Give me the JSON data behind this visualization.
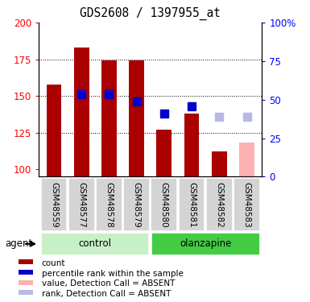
{
  "title": "GDS2608 / 1397955_at",
  "samples": [
    "GSM48559",
    "GSM48577",
    "GSM48578",
    "GSM48579",
    "GSM48580",
    "GSM48581",
    "GSM48582",
    "GSM48583"
  ],
  "bar_values": [
    158,
    183,
    174,
    174,
    127,
    138,
    112,
    null
  ],
  "bar_color": "#aa0000",
  "absent_bar_value": 118,
  "absent_bar_color": "#ffb0b0",
  "rank_values": [
    null,
    151,
    151,
    146,
    138,
    143,
    null,
    null
  ],
  "rank_color": "#0000cc",
  "absent_rank_values": [
    136,
    136
  ],
  "absent_rank_color": "#b8b8e8",
  "ylim_left": [
    95,
    200
  ],
  "ylim_right": [
    0,
    100
  ],
  "yticks_left": [
    100,
    125,
    150,
    175,
    200
  ],
  "yticks_right": [
    0,
    25,
    50,
    75,
    100
  ],
  "group_labels": [
    "control",
    "olanzapine"
  ],
  "group_color_light": "#c8f0c8",
  "group_color_dark": "#44cc44",
  "agent_label": "agent",
  "legend_items": [
    {
      "label": "count",
      "color": "#aa0000"
    },
    {
      "label": "percentile rank within the sample",
      "color": "#0000cc"
    },
    {
      "label": "value, Detection Call = ABSENT",
      "color": "#ffb0b0"
    },
    {
      "label": "rank, Detection Call = ABSENT",
      "color": "#b8b8e8"
    }
  ],
  "bar_width": 0.55
}
